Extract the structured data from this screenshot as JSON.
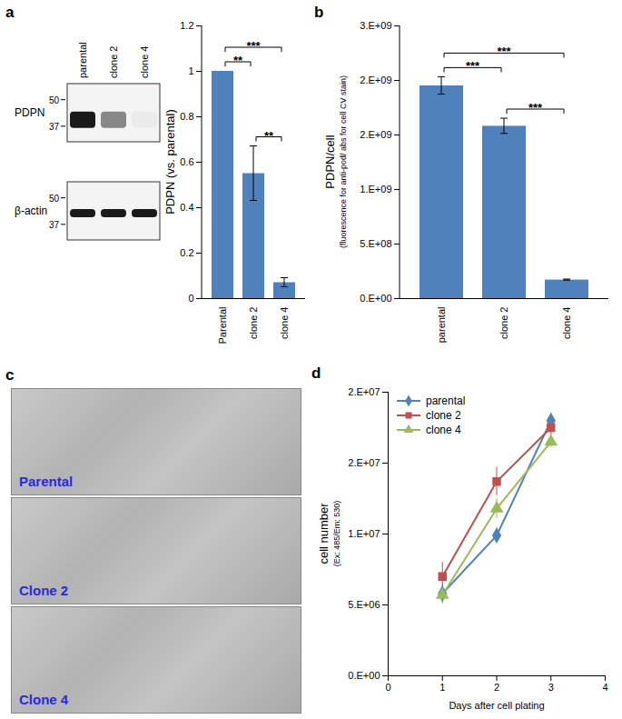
{
  "chart_data": [
    {
      "panel": "a",
      "type": "blot",
      "lanes": [
        "parental",
        "clone 2",
        "clone 4"
      ],
      "rows": [
        {
          "name": "PDPN",
          "mw_markers": [
            50,
            37
          ],
          "band_intensity": [
            1,
            0.5,
            0.04
          ]
        },
        {
          "name": "β-actin",
          "mw_markers": [
            50,
            37
          ],
          "band_intensity": [
            1,
            1,
            1
          ]
        }
      ]
    },
    {
      "type": "bar",
      "categories": [
        "Parental",
        "clone 2",
        "clone 4"
      ],
      "values": [
        1,
        0.55,
        0.07
      ],
      "errors": [
        0,
        0.12,
        0.02
      ],
      "ylabel": "PDPN (vs. parental)",
      "ylim": [
        0,
        1.2
      ],
      "yticks": [
        0,
        0.2,
        0.4,
        0.6,
        0.8,
        1,
        1.2
      ],
      "color": "#4f81bd",
      "significance": [
        {
          "from": "Parental",
          "to": "clone 2",
          "label": "**"
        },
        {
          "from": "Parental",
          "to": "clone 4",
          "label": "***"
        },
        {
          "from": "clone 2",
          "to": "clone 4",
          "label": "**"
        }
      ]
    },
    {
      "panel": "b",
      "type": "bar",
      "categories": [
        "parental",
        "clone 2",
        "clone 4"
      ],
      "values": [
        1950000000,
        1580000000,
        170000000
      ],
      "errors": [
        80000000,
        70000000,
        5000000
      ],
      "ylabel": "PDPN/cell",
      "ylabel_note": "(fluorescence for anti-pod/ abs for cell CV stain)",
      "ylim": [
        0,
        2500000000
      ],
      "yticks": [
        {
          "value": 0,
          "label": "0.E+00"
        },
        {
          "value": 500000000,
          "label": "5.E+08"
        },
        {
          "value": 1000000000,
          "label": "1.E+09"
        },
        {
          "value": 1500000000,
          "label": "2.E+09"
        },
        {
          "value": 2000000000,
          "label": "2.E+09"
        },
        {
          "value": 2500000000,
          "label": "3.E+09"
        }
      ],
      "color": "#4f81bd",
      "significance": [
        {
          "from": "parental",
          "to": "clone 2",
          "label": "***"
        },
        {
          "from": "parental",
          "to": "clone 4",
          "label": "***"
        },
        {
          "from": "clone 2",
          "to": "clone 4",
          "label": "***"
        }
      ]
    },
    {
      "panel": "c",
      "type": "image",
      "labels": [
        "Parental",
        "Clone 2",
        "Clone 4"
      ]
    },
    {
      "panel": "d",
      "type": "line",
      "x": [
        1,
        2,
        3
      ],
      "xlim": [
        0,
        4
      ],
      "xticks": [
        0,
        1,
        2,
        3,
        4
      ],
      "xlabel": "Days after cell plating",
      "ylabel": "cell number",
      "ylabel_note": "(Ex: 485/Em: 530)",
      "ylim": [
        0,
        20000000
      ],
      "yticks": [
        {
          "value": 0,
          "label": "0.E+00"
        },
        {
          "value": 5000000,
          "label": "5.E+06"
        },
        {
          "value": 10000000,
          "label": "1.E+07"
        },
        {
          "value": 15000000,
          "label": "2.E+07"
        },
        {
          "value": 20000000,
          "label": "2.E+07"
        }
      ],
      "legend": "top-left",
      "series": [
        {
          "name": "parental",
          "color": "#4f81bd",
          "marker": "diamond",
          "values": [
            5800000,
            9900000,
            18000000
          ],
          "errors": [
            700000,
            500000,
            500000
          ]
        },
        {
          "name": "clone 2",
          "color": "#c0504d",
          "marker": "square",
          "values": [
            7000000,
            13700000,
            17500000
          ],
          "errors": [
            1000000,
            1000000,
            700000
          ]
        },
        {
          "name": "clone 4",
          "color": "#9bbb59",
          "marker": "triangle",
          "values": [
            5700000,
            11800000,
            16500000
          ],
          "errors": [
            500000,
            700000,
            400000
          ]
        }
      ]
    }
  ]
}
